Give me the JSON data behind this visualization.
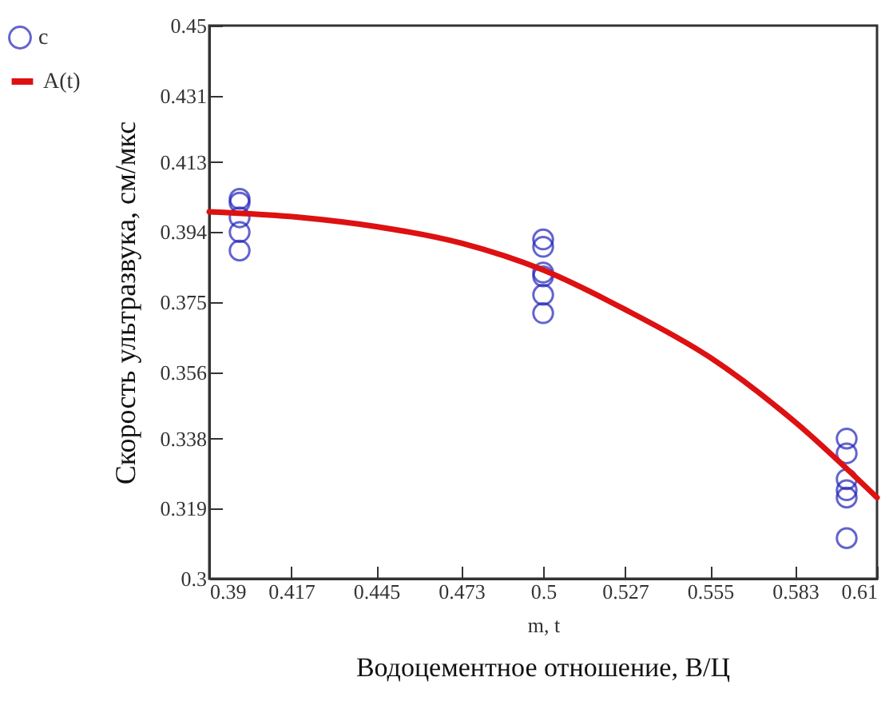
{
  "chart_data": {
    "type": "scatter",
    "xlabel": "m, t",
    "ylabel": "Скорость ультразвука, см/мкс",
    "annotations": [
      "Водоцементное отношение, В/Ц"
    ],
    "xlim": [
      0.39,
      0.61
    ],
    "xticks": [
      0.39,
      0.417,
      0.445,
      0.473,
      0.5,
      0.527,
      0.555,
      0.583,
      0.61
    ],
    "ylim": [
      0.3,
      0.45
    ],
    "yticks": [
      0.3,
      0.319,
      0.338,
      0.356,
      0.375,
      0.394,
      0.413,
      0.431,
      0.45
    ],
    "grid": false,
    "legend": "left",
    "marker": "circle",
    "series": [
      {
        "name": "c",
        "color": "#2222bb",
        "x": [
          0.4,
          0.4,
          0.4,
          0.4,
          0.4,
          0.5,
          0.5,
          0.5,
          0.5,
          0.5,
          0.5,
          0.6,
          0.6,
          0.6,
          0.6,
          0.6,
          0.6
        ],
        "values": [
          0.403,
          0.402,
          0.398,
          0.394,
          0.389,
          0.392,
          0.39,
          0.383,
          0.382,
          0.377,
          0.372,
          0.338,
          0.334,
          0.327,
          0.324,
          0.322,
          0.311
        ]
      },
      {
        "name": "A(t)",
        "type": "line",
        "color": "#dd1111",
        "line_style": "solid",
        "marker": "none",
        "x": [
          0.39,
          0.42,
          0.445,
          0.473,
          0.5,
          0.527,
          0.555,
          0.583,
          0.61
        ],
        "values": [
          0.3995,
          0.398,
          0.3955,
          0.391,
          0.3837,
          0.373,
          0.36,
          0.3425,
          0.322
        ]
      }
    ]
  }
}
